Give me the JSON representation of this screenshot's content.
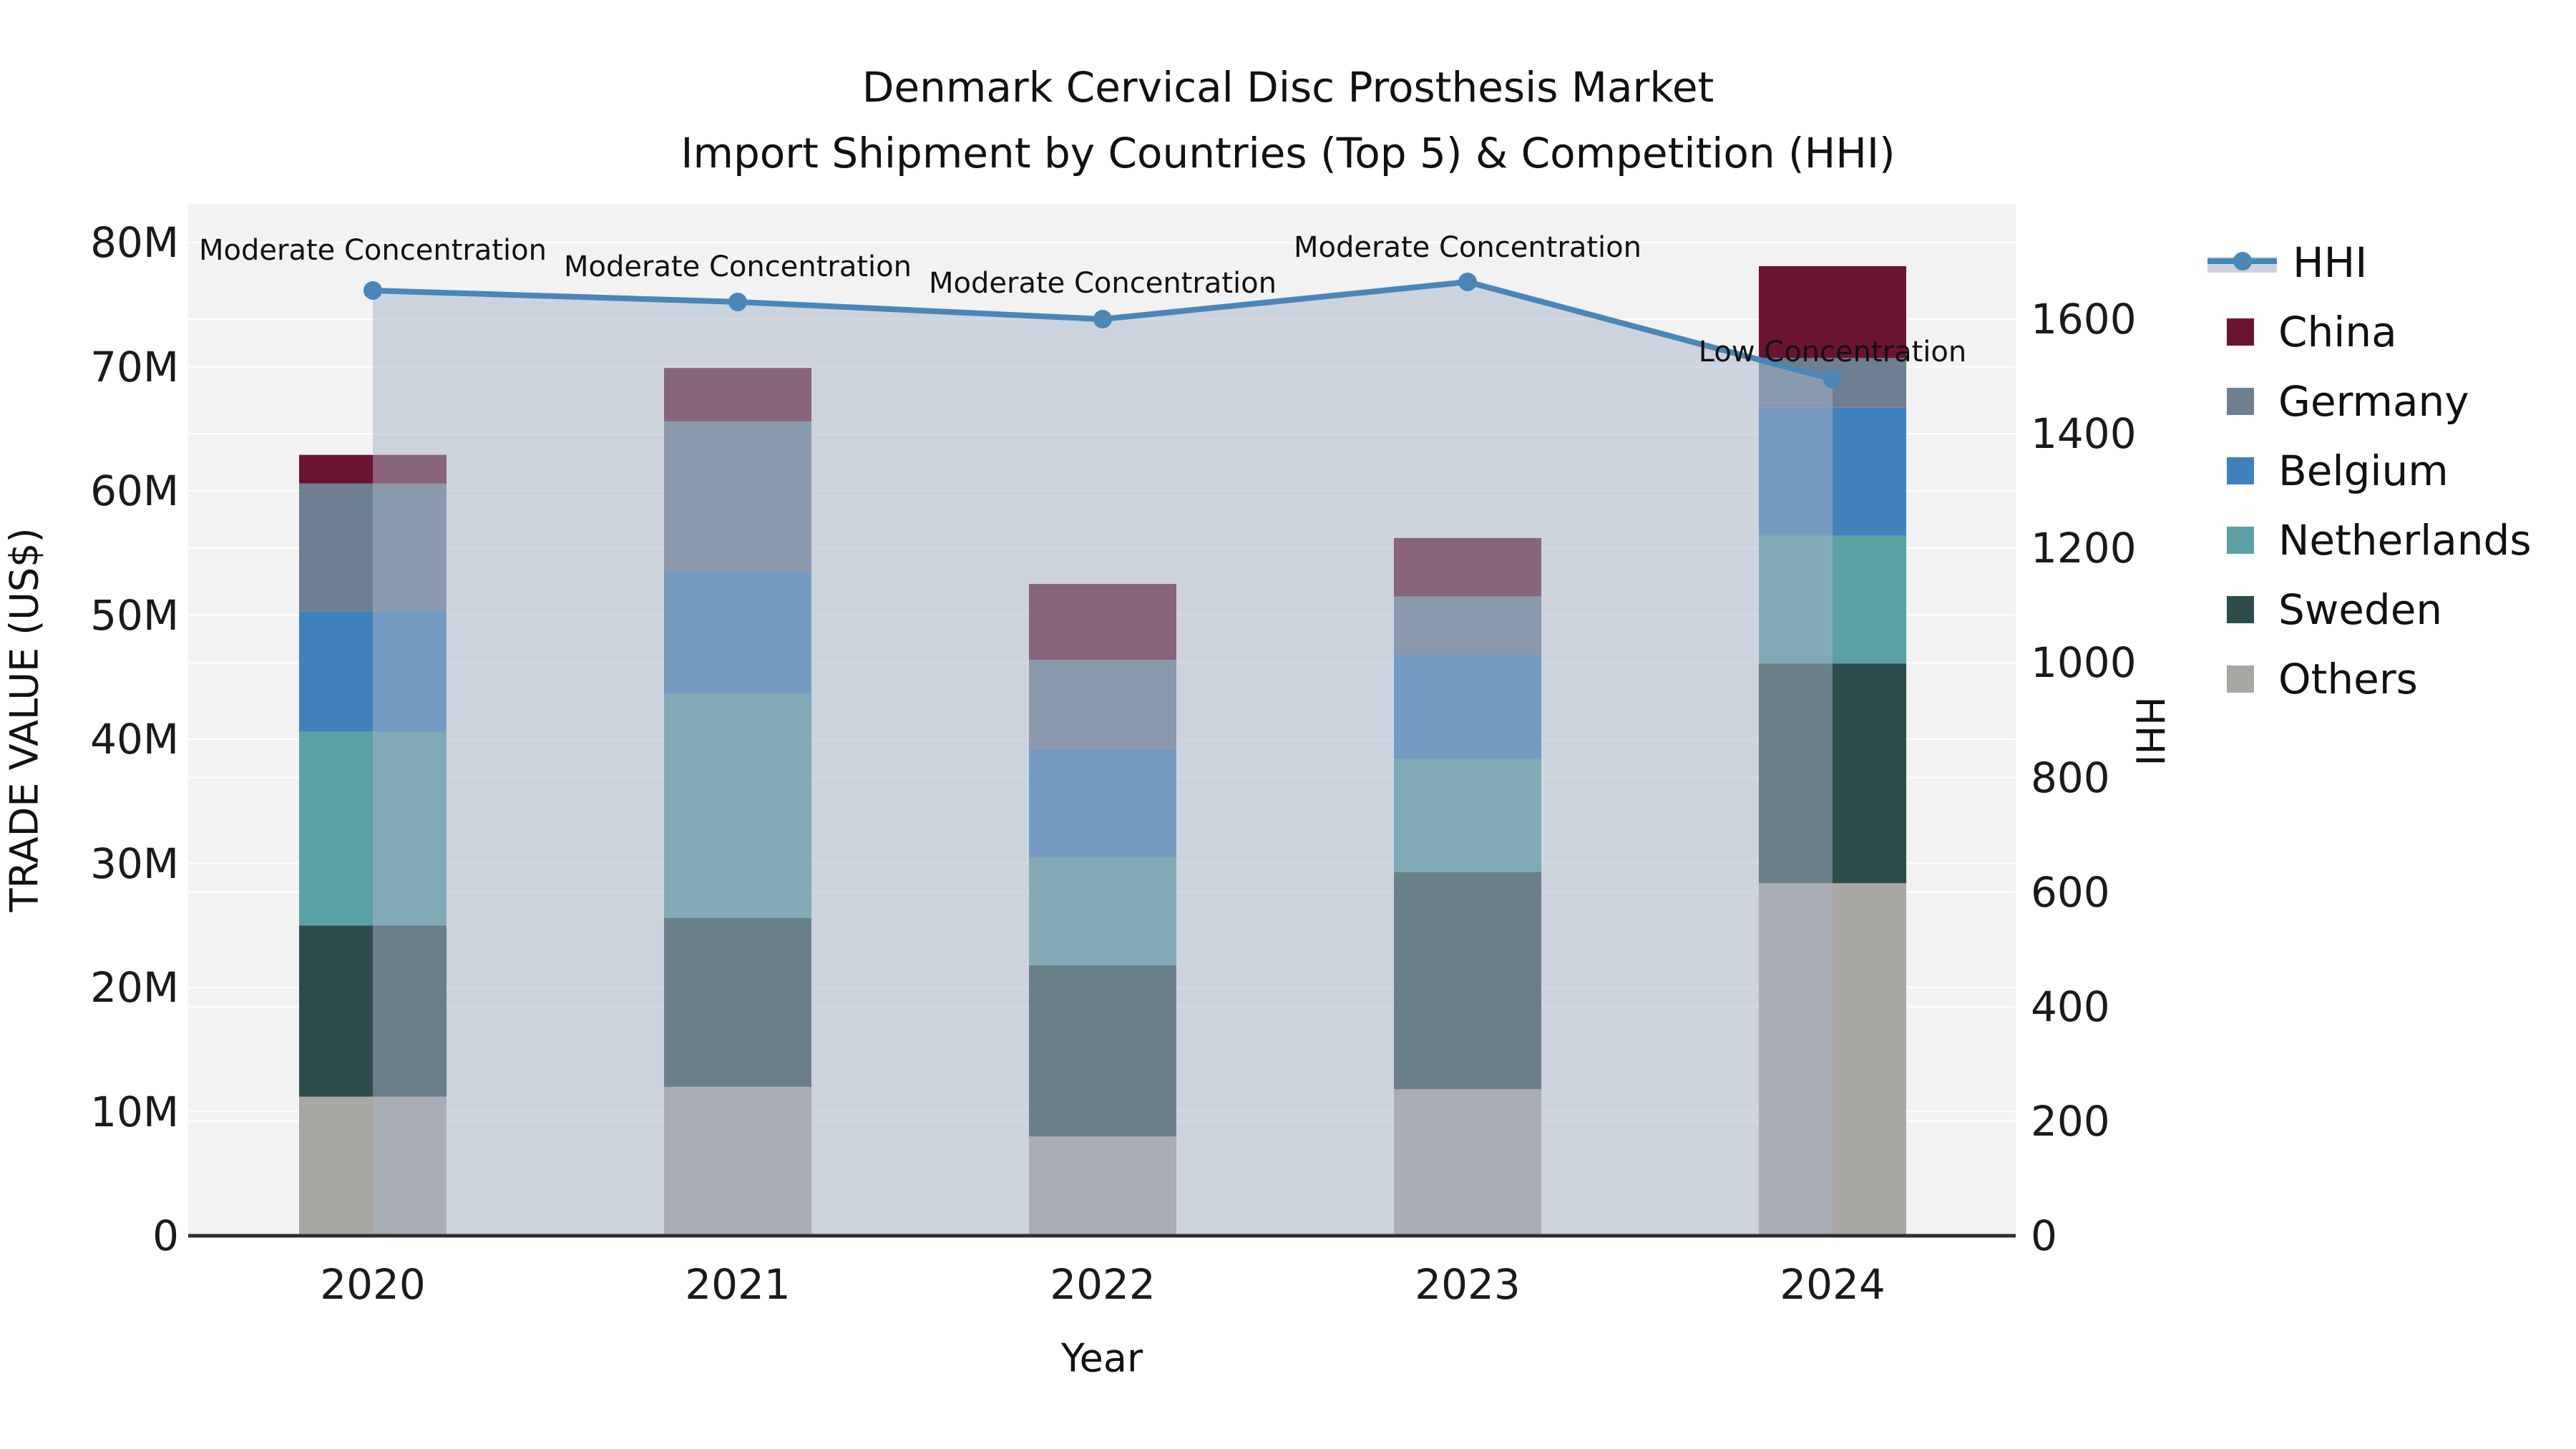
{
  "title": {
    "line1": "Denmark Cervical Disc Prosthesis Market",
    "line2": "Import Shipment by Countries (Top 5) & Competition (HHI)"
  },
  "axes": {
    "x_label": "Year",
    "y_left_label": "TRADE VALUE (US$)",
    "y_right_label": "HHI",
    "x_ticks": [
      "2020",
      "2021",
      "2022",
      "2023",
      "2024"
    ],
    "y_left_ticks": {
      "values": [
        0,
        10,
        20,
        30,
        40,
        50,
        60,
        70,
        80
      ],
      "labels": [
        "0",
        "10M",
        "20M",
        "30M",
        "40M",
        "50M",
        "60M",
        "70M",
        "80M"
      ]
    },
    "y_right_ticks": {
      "values": [
        0,
        200,
        400,
        600,
        800,
        1000,
        1200,
        1400,
        1600
      ],
      "labels": [
        "0",
        "200",
        "400",
        "600",
        "800",
        "1000",
        "1200",
        "1400",
        "1600"
      ]
    }
  },
  "legend": {
    "items": [
      {
        "label": "HHI",
        "type": "line",
        "color": "#4a86b8"
      },
      {
        "label": "China",
        "type": "patch",
        "color": "#6a1433"
      },
      {
        "label": "Germany",
        "type": "patch",
        "color": "#6e7f92"
      },
      {
        "label": "Belgium",
        "type": "patch",
        "color": "#4181bb"
      },
      {
        "label": "Netherlands",
        "type": "patch",
        "color": "#5ba1a3"
      },
      {
        "label": "Sweden",
        "type": "patch",
        "color": "#2d4c4b"
      },
      {
        "label": "Others",
        "type": "patch",
        "color": "#a9a7a4"
      }
    ]
  },
  "annotations": [
    {
      "year": "2020",
      "text": "Moderate Concentration",
      "dy": -56
    },
    {
      "year": "2021",
      "text": "Moderate Concentration",
      "dy": -49
    },
    {
      "year": "2022",
      "text": "Moderate Concentration",
      "dy": -50
    },
    {
      "year": "2023",
      "text": "Moderate Concentration",
      "dy": -48
    },
    {
      "year": "2024",
      "text": "Low Concentration",
      "dy": -38
    }
  ],
  "colors": {
    "plot_background": "#f2f2f2",
    "gridline": "#ffffff",
    "axis_spine": "#2e2e2e",
    "hhi_line": "#4a86b8",
    "hhi_fill": "rgba(167,179,200,0.5)"
  },
  "chart_data": {
    "type": "bar+line",
    "title": "Denmark Cervical Disc Prosthesis Market — Import Shipment by Countries (Top 5) & Competition (HHI)",
    "xlabel": "Year",
    "ylabel_left": "TRADE VALUE (US$)",
    "ylabel_right": "HHI",
    "categories": [
      "2020",
      "2021",
      "2022",
      "2023",
      "2024"
    ],
    "stack_order_bottom_to_top": [
      "Others",
      "Sweden",
      "Netherlands",
      "Belgium",
      "Germany",
      "China"
    ],
    "series": [
      {
        "name": "Others",
        "color": "#a9a7a4",
        "values_musd": [
          11.2,
          12.0,
          8.0,
          11.8,
          28.4
        ]
      },
      {
        "name": "Sweden",
        "color": "#2d4c4b",
        "values_musd": [
          13.8,
          13.6,
          13.8,
          17.5,
          17.7
        ]
      },
      {
        "name": "Netherlands",
        "color": "#5ba1a3",
        "values_musd": [
          15.6,
          18.1,
          8.7,
          9.1,
          10.3
        ]
      },
      {
        "name": "Belgium",
        "color": "#4181bb",
        "values_musd": [
          9.7,
          9.8,
          8.7,
          8.4,
          10.3
        ]
      },
      {
        "name": "Germany",
        "color": "#6e7f92",
        "values_musd": [
          10.3,
          12.1,
          7.2,
          4.7,
          4.0
        ]
      },
      {
        "name": "China",
        "color": "#6a1433",
        "values_musd": [
          2.3,
          4.3,
          6.1,
          4.7,
          7.4
        ]
      }
    ],
    "bar_totals_musd": [
      62.9,
      69.9,
      52.5,
      56.2,
      78.1
    ],
    "hhi": {
      "name": "HHI",
      "color": "#4a86b8",
      "fill_color": "rgba(167,179,200,0.5)",
      "values": [
        1650,
        1630,
        1600,
        1665,
        1495
      ]
    },
    "ylim_left_musd": [
      0,
      83
    ],
    "ylim_right": [
      0,
      1800
    ],
    "grid": true,
    "legend_position": "right"
  }
}
